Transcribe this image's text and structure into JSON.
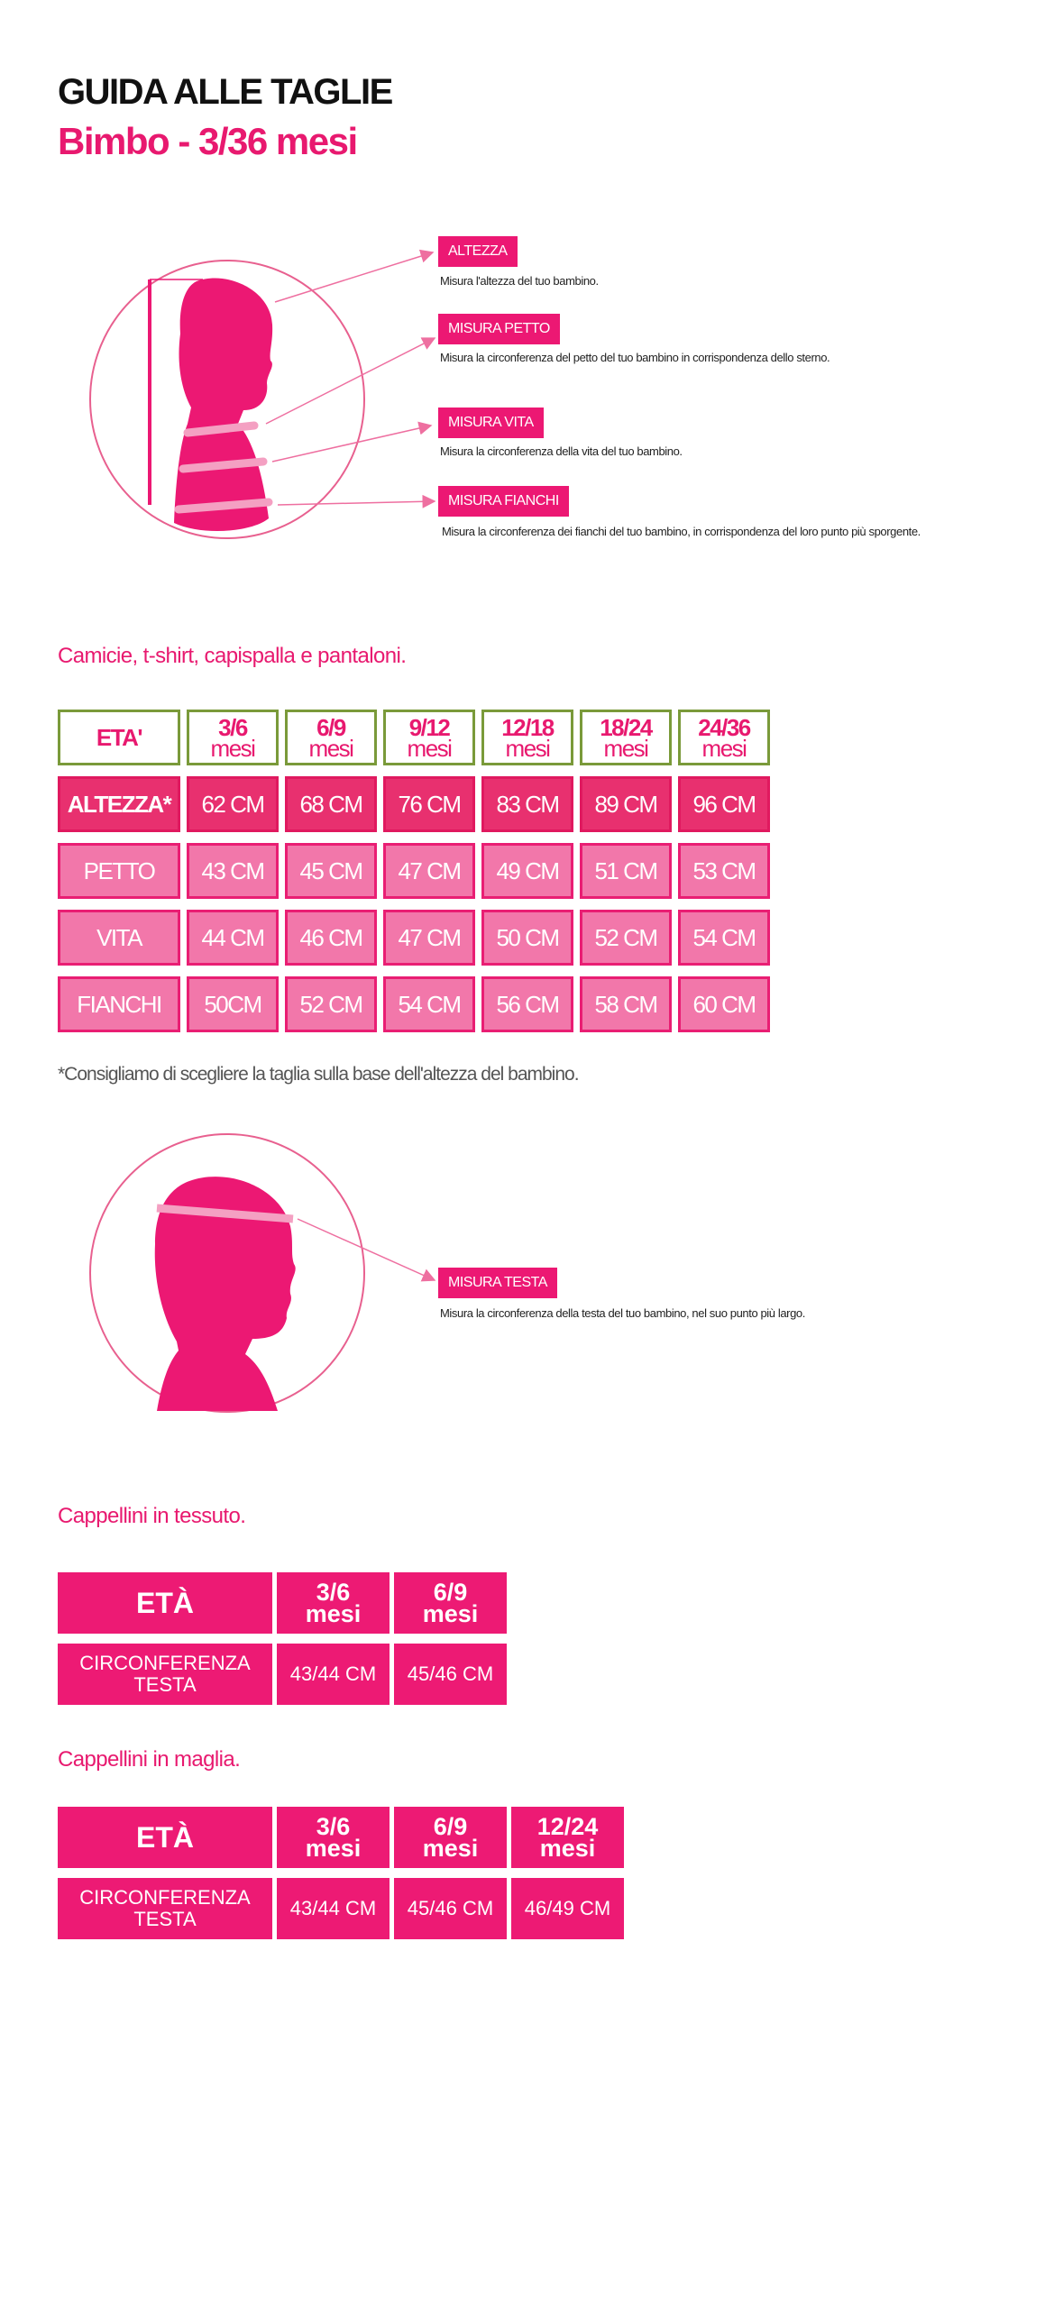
{
  "header": {
    "title": "GUIDA ALLE TAGLIE",
    "subtitle": "Bimbo - 3/36 mesi"
  },
  "colors": {
    "brand_pink": "#ec1873",
    "light_pink": "#f277aa",
    "header_border_green": "#7a9a3a"
  },
  "body_guide": {
    "items": [
      {
        "label": "ALTEZZA",
        "description": "Misura l'altezza del tuo bambino."
      },
      {
        "label": "MISURA PETTO",
        "description": "Misura la circonferenza del petto del tuo bambino in corrispondenza dello sterno."
      },
      {
        "label": "MISURA VITA",
        "description": "Misura la circonferenza della vita del tuo bambino."
      },
      {
        "label": "MISURA FIANCHI",
        "description": "Misura la circonferenza dei fianchi del tuo bambino, in corrispondenza del loro punto più sporgente."
      }
    ]
  },
  "clothing": {
    "title": "Camicie, t-shirt, capispalla e pantaloni.",
    "header_label": "ETA'",
    "ages": [
      {
        "range": "3/6",
        "unit": "mesi"
      },
      {
        "range": "6/9",
        "unit": "mesi"
      },
      {
        "range": "9/12",
        "unit": "mesi"
      },
      {
        "range": "12/18",
        "unit": "mesi"
      },
      {
        "range": "18/24",
        "unit": "mesi"
      },
      {
        "range": "24/36",
        "unit": "mesi"
      }
    ],
    "rows": [
      {
        "label": "ALTEZZA*",
        "values": [
          "62 CM",
          "68 CM",
          "76 CM",
          "83 CM",
          "89 CM",
          "96 CM"
        ]
      },
      {
        "label": "PETTO",
        "values": [
          "43 CM",
          "45 CM",
          "47 CM",
          "49 CM",
          "51 CM",
          "53 CM"
        ]
      },
      {
        "label": "VITA",
        "values": [
          "44 CM",
          "46 CM",
          "47 CM",
          "50 CM",
          "52 CM",
          "54 CM"
        ]
      },
      {
        "label": "FIANCHI",
        "values": [
          "50CM",
          "52 CM",
          "54 CM",
          "56 CM",
          "58 CM",
          "60 CM"
        ]
      }
    ],
    "footnote": "*Consigliamo di scegliere la taglia sulla base dell'altezza del bambino."
  },
  "head_guide": {
    "label": "MISURA TESTA",
    "description": "Misura la circonferenza della testa del tuo bambino, nel suo punto più largo."
  },
  "hats_fabric": {
    "title": "Cappellini in tessuto.",
    "header_label": "ETÀ",
    "ages": [
      {
        "range": "3/6",
        "unit": "mesi"
      },
      {
        "range": "6/9",
        "unit": "mesi"
      }
    ],
    "row_label_1": "CIRCONFERENZA",
    "row_label_2": "TESTA",
    "values": [
      "43/44 CM",
      "45/46 CM"
    ]
  },
  "hats_knit": {
    "title": "Cappellini in maglia.",
    "header_label": "ETÀ",
    "ages": [
      {
        "range": "3/6",
        "unit": "mesi"
      },
      {
        "range": "6/9",
        "unit": "mesi"
      },
      {
        "range": "12/24",
        "unit": "mesi"
      }
    ],
    "row_label_1": "CIRCONFERENZA",
    "row_label_2": "TESTA",
    "values": [
      "43/44 CM",
      "45/46 CM",
      "46/49 CM"
    ]
  }
}
